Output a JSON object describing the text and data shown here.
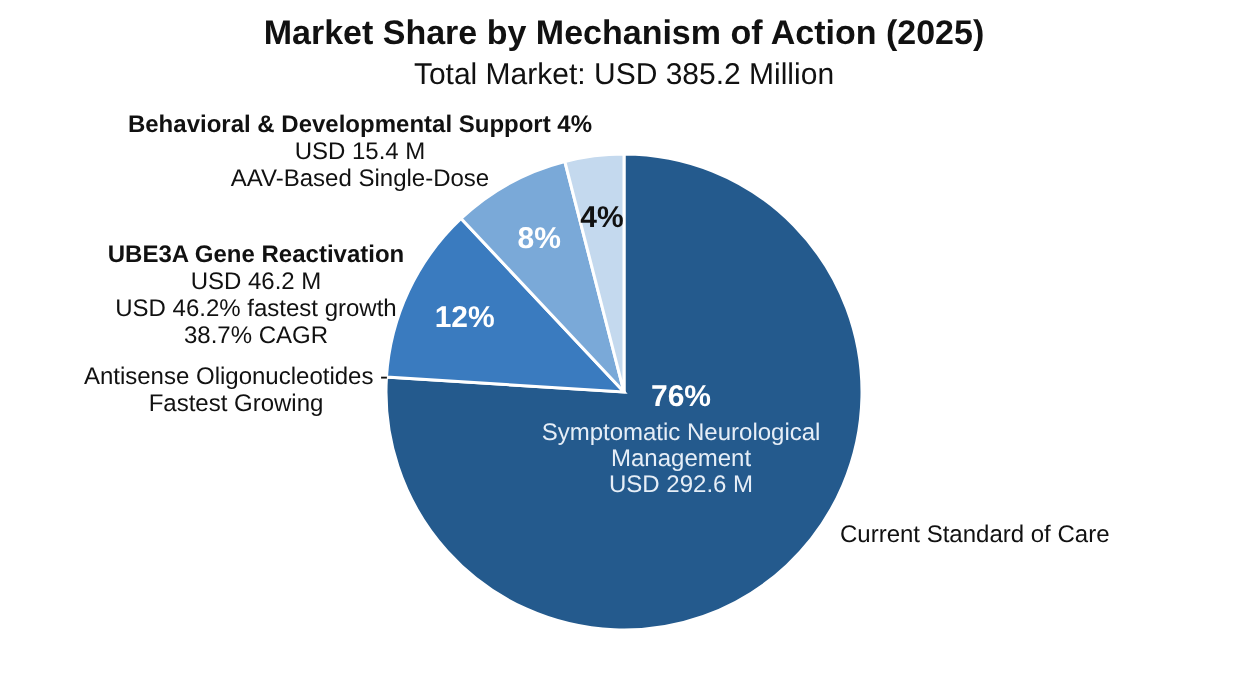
{
  "chart_data": {
    "type": "pie",
    "title": "Market Share by Mechanism of Action (2025)",
    "subtitle": "Total Market: USD 385.2 Million",
    "categories": [
      "Symptomatic Neurological Management",
      null,
      null,
      null
    ],
    "values": [
      76,
      12,
      8,
      4
    ],
    "colors": [
      "#245a8d",
      "#3a7bbf",
      "#7aa9d8",
      "#c4d9ee"
    ],
    "value_labels": [
      "76%",
      "12%",
      "8%",
      "4%"
    ],
    "annotations": [
      "USD 292.6 M",
      "Behavioral & Developmental Support 4%\nUSD 15.4 M\nAAV-Based Single-Dose",
      "UBE3A Gene Reactivation\nUSD 46.2 M\nUSD 46.2% fastest growth\n38.7% CAGR",
      "Antisense Oligonucleotides -\nFastest Growing",
      "Current Standard of Care"
    ]
  }
}
